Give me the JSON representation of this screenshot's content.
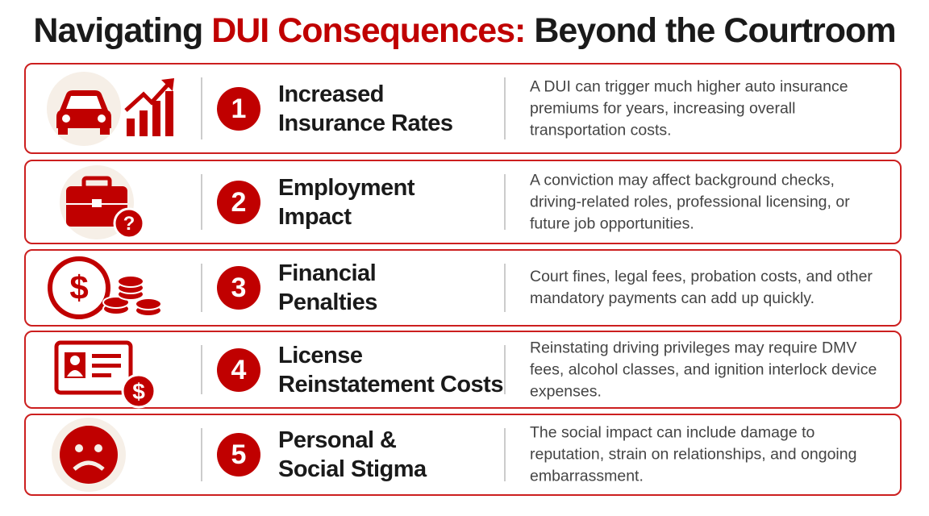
{
  "header": {
    "title_start": "Navigating",
    "title_highlight": "DUI Consequences:",
    "title_end": "Beyond the Courtroom"
  },
  "items": [
    {
      "number": 1,
      "heading": [
        "Increased",
        "Insurance Rates"
      ],
      "description": "A DUI can trigger much higher auto insurance premiums for years, increasing overall transportation costs."
    },
    {
      "number": 2,
      "heading": [
        "Employment",
        "Impact"
      ],
      "description": "A conviction may affect background checks, driving-related roles, professional licensing, or future job opportunities."
    },
    {
      "number": 3,
      "heading": [
        "Financial",
        "Penalties"
      ],
      "description": "Court fines, legal fees, probation costs, and other mandatory payments can add up quickly."
    },
    {
      "number": 4,
      "heading": [
        "License",
        "Reinstatement Costs"
      ],
      "description": "Reinstating driving privileges may require DMV fees, alcohol classes, and ignition interlock device expenses."
    },
    {
      "number": 5,
      "heading": [
        "Personal &",
        "Social Stigma"
      ],
      "description": "The social impact can include damage to reputation, strain on relationships, and ongoing embarrassment."
    }
  ]
}
